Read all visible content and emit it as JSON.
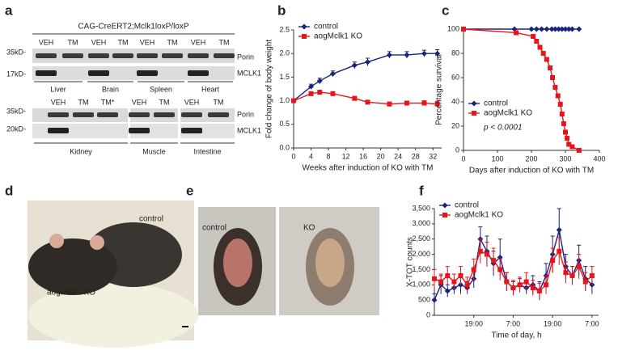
{
  "panel_labels": [
    "a",
    "b",
    "c",
    "d",
    "e",
    "f"
  ],
  "blot": {
    "header": "CAG-CreERT2;Mclk1loxP/loxP",
    "top": {
      "lanes": [
        "VEH",
        "TM",
        "VEH",
        "TM",
        "VEH",
        "TM",
        "VEH",
        "TM"
      ],
      "markers": [
        "35kD-",
        "17kD-"
      ],
      "bands": [
        "Porin",
        "MCLK1"
      ],
      "tissues": [
        "Liver",
        "Brain",
        "Spleen",
        "Heart"
      ]
    },
    "bottom": {
      "lanes": [
        "VEH",
        "TM",
        "TM*",
        "VEH",
        "TM",
        "VEH",
        "TM"
      ],
      "markers": [
        "35kD-",
        "20kD-"
      ],
      "bands": [
        "Porin",
        "MCLK1"
      ],
      "tissues": [
        "Kidney",
        "Muscle",
        "Intestine"
      ]
    }
  },
  "photo_d": {
    "labels": [
      "control",
      "aogMclk1 KO"
    ]
  },
  "photo_e": {
    "labels": [
      "control",
      "KO"
    ]
  },
  "chart_data": [
    {
      "type": "line",
      "xlabel": "Weeks after induction of KO with TM",
      "ylabel": "Fold change of body weight",
      "xlim": [
        0,
        34
      ],
      "xticks": [
        0,
        4,
        8,
        12,
        16,
        20,
        24,
        28,
        32
      ],
      "ylim": [
        0,
        2.5
      ],
      "yticks": [
        {
          "value": 0,
          "label": "0.0"
        },
        {
          "value": 0.5,
          "label": "0.5"
        },
        {
          "value": 1,
          "label": "1.0"
        },
        {
          "value": 1.5,
          "label": "1.5"
        },
        {
          "value": 2,
          "label": "2.0"
        },
        {
          "value": 2.5,
          "label": "2.5"
        }
      ],
      "legend": "upper left",
      "series": [
        {
          "name": "control",
          "color": "#1a237e",
          "marker": "diamond",
          "x": [
            0,
            4,
            6,
            9,
            14,
            17,
            22,
            26,
            30,
            33
          ],
          "values": [
            1.0,
            1.3,
            1.42,
            1.57,
            1.75,
            1.82,
            1.97,
            1.97,
            2.0,
            2.0
          ],
          "errors": [
            0.03,
            0.05,
            0.06,
            0.06,
            0.07,
            0.08,
            0.07,
            0.07,
            0.07,
            0.08
          ]
        },
        {
          "name": "aogMclk1 KO",
          "color": "#e8141a",
          "marker": "square",
          "x": [
            0,
            4,
            6,
            9,
            14,
            17,
            22,
            26,
            30,
            33
          ],
          "values": [
            1.0,
            1.15,
            1.18,
            1.15,
            1.05,
            0.97,
            0.93,
            0.95,
            0.95,
            0.93
          ],
          "errors": [
            0.03,
            0.04,
            0.04,
            0.04,
            0.04,
            0.04,
            0.04,
            0.04,
            0.05,
            0.06
          ]
        }
      ]
    },
    {
      "type": "line",
      "xlabel": "Days after induction of KO with TM",
      "ylabel": "Percentage survival",
      "xlim": [
        0,
        400
      ],
      "xticks": [
        0,
        100,
        200,
        300,
        400
      ],
      "ylim": [
        0,
        100
      ],
      "yticks": [
        0,
        20,
        40,
        60,
        80,
        100
      ],
      "legend": "lower left",
      "annotation": "p < 0.0001",
      "series": [
        {
          "name": "control",
          "color": "#1a237e",
          "marker": "diamond",
          "x": [
            0,
            150,
            200,
            215,
            230,
            245,
            260,
            270,
            280,
            290,
            300,
            310,
            320,
            340
          ],
          "values": [
            100,
            100,
            100,
            100,
            100,
            100,
            100,
            100,
            100,
            100,
            100,
            100,
            100,
            100
          ]
        },
        {
          "name": "aogMclk1 KO",
          "color": "#e8141a",
          "marker": "square",
          "x": [
            0,
            155,
            205,
            215,
            225,
            235,
            245,
            255,
            262,
            270,
            278,
            285,
            290,
            295,
            300,
            305,
            310,
            320,
            340
          ],
          "values": [
            100,
            97,
            94,
            90,
            85,
            80,
            75,
            68,
            60,
            52,
            45,
            38,
            30,
            22,
            15,
            10,
            5,
            3,
            0
          ]
        }
      ]
    },
    {
      "type": "line",
      "xlabel": "Time of day, h",
      "ylabel": "X-TOT counts",
      "xlim": [
        0,
        50
      ],
      "xticks": [
        {
          "value": 12,
          "label": "19:00"
        },
        {
          "value": 24,
          "label": "7:00"
        },
        {
          "value": 36,
          "label": "19:00"
        },
        {
          "value": 48,
          "label": "7:00"
        }
      ],
      "ylim": [
        0,
        3500
      ],
      "yticks": [
        0,
        500,
        {
          "value": 1000,
          "label": "1,000"
        },
        {
          "value": 1500,
          "label": "1,500"
        },
        {
          "value": 2000,
          "label": "2,000"
        },
        {
          "value": 2500,
          "label": "2,500"
        },
        {
          "value": 3000,
          "label": "3,000"
        },
        {
          "value": 3500,
          "label": "3,500"
        }
      ],
      "legend": "upper left",
      "series": [
        {
          "name": "control",
          "color": "#1a237e",
          "marker": "diamond",
          "x": [
            0,
            2,
            4,
            6,
            8,
            10,
            12,
            14,
            16,
            18,
            20,
            22,
            24,
            26,
            28,
            30,
            32,
            34,
            36,
            38,
            40,
            42,
            44,
            46,
            48
          ],
          "values": [
            500,
            1000,
            800,
            900,
            1000,
            900,
            1200,
            2500,
            2100,
            1700,
            1900,
            1100,
            900,
            1000,
            900,
            1000,
            800,
            1300,
            2000,
            2800,
            1600,
            1300,
            1800,
            1200,
            1000
          ],
          "errors": [
            200,
            300,
            200,
            200,
            300,
            200,
            300,
            400,
            500,
            400,
            600,
            300,
            200,
            200,
            200,
            300,
            300,
            400,
            600,
            700,
            400,
            300,
            500,
            400,
            300
          ]
        },
        {
          "name": "aogMclk1 KO",
          "color": "#e8141a",
          "marker": "square",
          "x": [
            0,
            2,
            4,
            6,
            8,
            10,
            12,
            14,
            16,
            18,
            20,
            22,
            24,
            26,
            28,
            30,
            32,
            34,
            36,
            38,
            40,
            42,
            44,
            46,
            48
          ],
          "values": [
            1200,
            1100,
            1300,
            1100,
            1300,
            1000,
            1500,
            2100,
            2000,
            1800,
            1500,
            1100,
            900,
            1000,
            1100,
            900,
            800,
            1000,
            1800,
            2100,
            1400,
            1300,
            1600,
            1100,
            1300
          ],
          "errors": [
            300,
            250,
            300,
            250,
            300,
            250,
            350,
            400,
            400,
            400,
            350,
            300,
            250,
            250,
            300,
            250,
            250,
            300,
            400,
            450,
            350,
            300,
            400,
            300,
            300
          ]
        }
      ]
    }
  ]
}
